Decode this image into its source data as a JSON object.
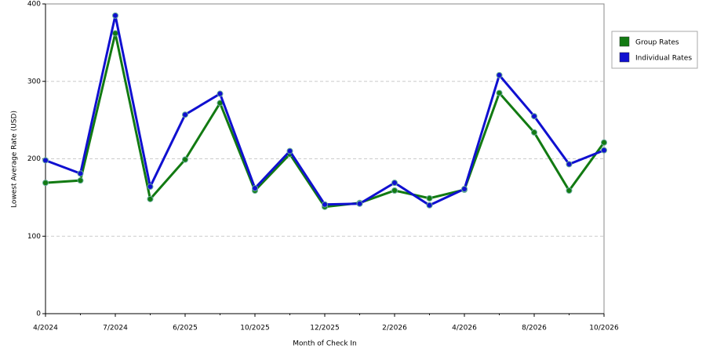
{
  "chart_data": {
    "type": "line",
    "y_label": "Lowest Average Rate (USD)",
    "x_label": "Month of Check In",
    "categories": [
      "4/2024",
      null,
      "7/2024",
      null,
      "6/2025",
      null,
      "10/2025",
      null,
      "12/2025",
      null,
      "2/2026",
      null,
      "4/2026",
      null,
      "8/2026",
      null,
      "10/2026"
    ],
    "series": [
      {
        "name": "Group Rates",
        "color": "#127a12",
        "values": [
          169,
          172,
          362,
          148,
          199,
          272,
          159,
          206,
          138,
          143,
          159,
          149,
          160,
          285,
          234,
          159,
          221
        ]
      },
      {
        "name": "Individual Rates",
        "color": "#1010d0",
        "values": [
          198,
          181,
          385,
          164,
          257,
          284,
          162,
          210,
          141,
          142,
          169,
          140,
          161,
          308,
          255,
          193,
          211
        ]
      }
    ],
    "ylim": [
      0,
      400
    ],
    "yticks": [
      0,
      100,
      200,
      300,
      400
    ],
    "grid": true
  }
}
